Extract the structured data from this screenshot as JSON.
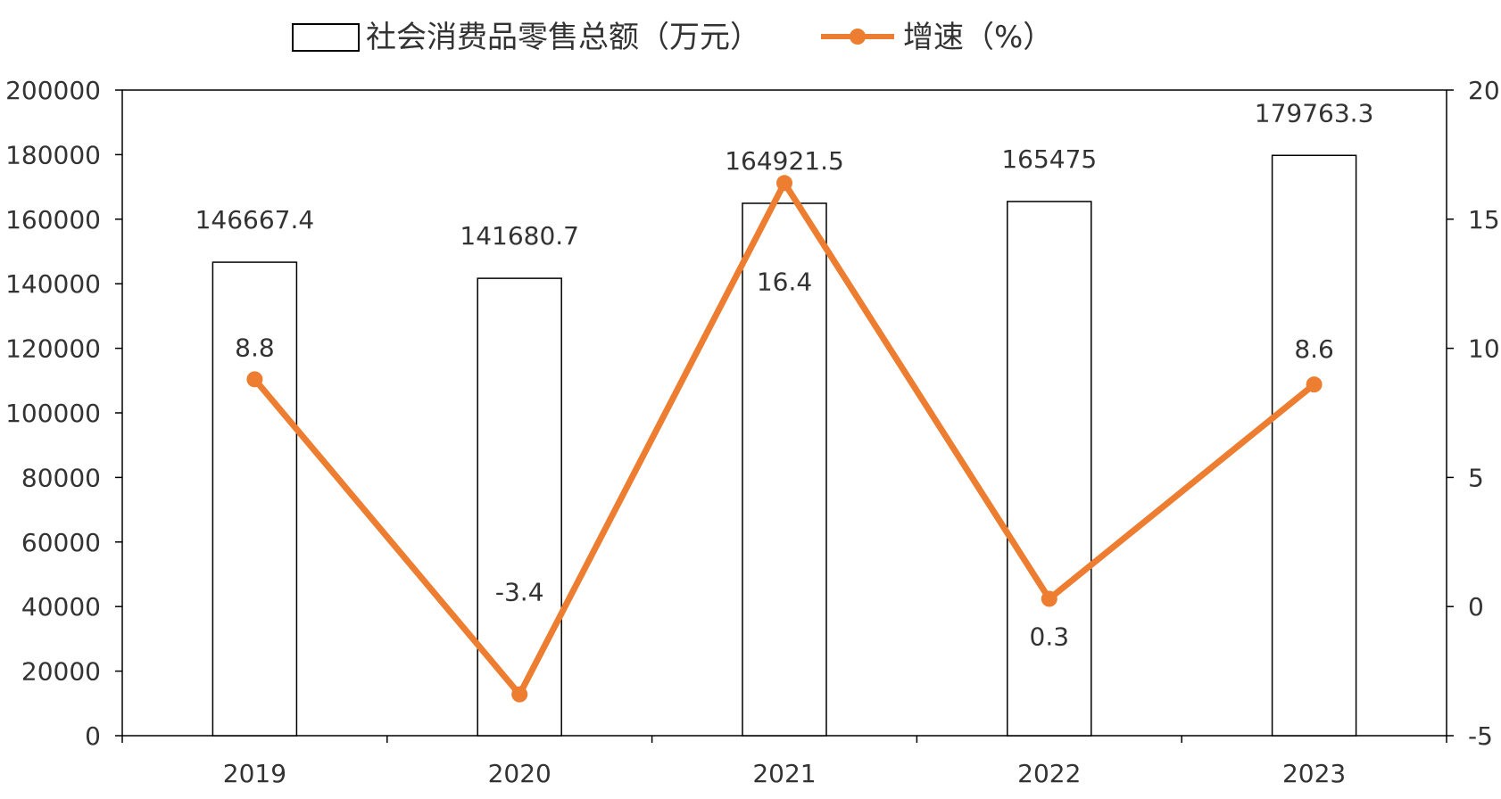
{
  "chart_data": {
    "type": "bar+line",
    "title": "",
    "categories": [
      "2019",
      "2020",
      "2021",
      "2022",
      "2023"
    ],
    "series": [
      {
        "name": "社会消费品零售总额（万元）",
        "type": "bar",
        "axis": "left",
        "values": [
          146667.4,
          141680.7,
          164921.5,
          165475,
          179763.3
        ],
        "labels": [
          "146667.4",
          "141680.7",
          "164921.5",
          "165475",
          "179763.3"
        ],
        "fill": "#ffffff",
        "stroke": "#000000"
      },
      {
        "name": "增速（%）",
        "type": "line",
        "axis": "right",
        "values": [
          8.8,
          -3.4,
          16.4,
          0.3,
          8.6
        ],
        "labels": [
          "8.8",
          "-3.4",
          "16.4",
          "0.3",
          "8.6"
        ],
        "color": "#ED7D31"
      }
    ],
    "y_left": {
      "min": 0,
      "max": 200000,
      "step": 20000,
      "ticks": [
        "0",
        "20000",
        "40000",
        "60000",
        "80000",
        "100000",
        "120000",
        "140000",
        "160000",
        "180000",
        "200000"
      ]
    },
    "y_right": {
      "min": -5,
      "max": 20,
      "step": 5,
      "ticks": [
        "-5",
        "0",
        "5",
        "10",
        "15",
        "20"
      ]
    },
    "grid": false,
    "legend": "top-center"
  }
}
